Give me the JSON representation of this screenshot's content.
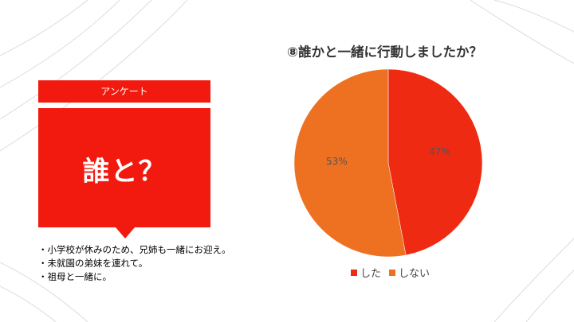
{
  "slide": {
    "label": "アンケート",
    "title": "誰と？",
    "notes": [
      "・小学校が休みのため、兄姉も一緒にお迎え。",
      "・未就園の弟妹を連れて。",
      "・祖母と一緒に。"
    ]
  },
  "colors": {
    "accent": "#f21a0f",
    "slice_did": "#ef2a12",
    "slice_didnot": "#ee7021"
  },
  "chart_data": {
    "type": "pie",
    "title": "⑧誰かと一緒に行動しましたか？",
    "categories": [
      "した",
      "しない"
    ],
    "values": [
      47,
      53
    ],
    "labels": [
      "47%",
      "53%"
    ],
    "legend": "bottom"
  }
}
